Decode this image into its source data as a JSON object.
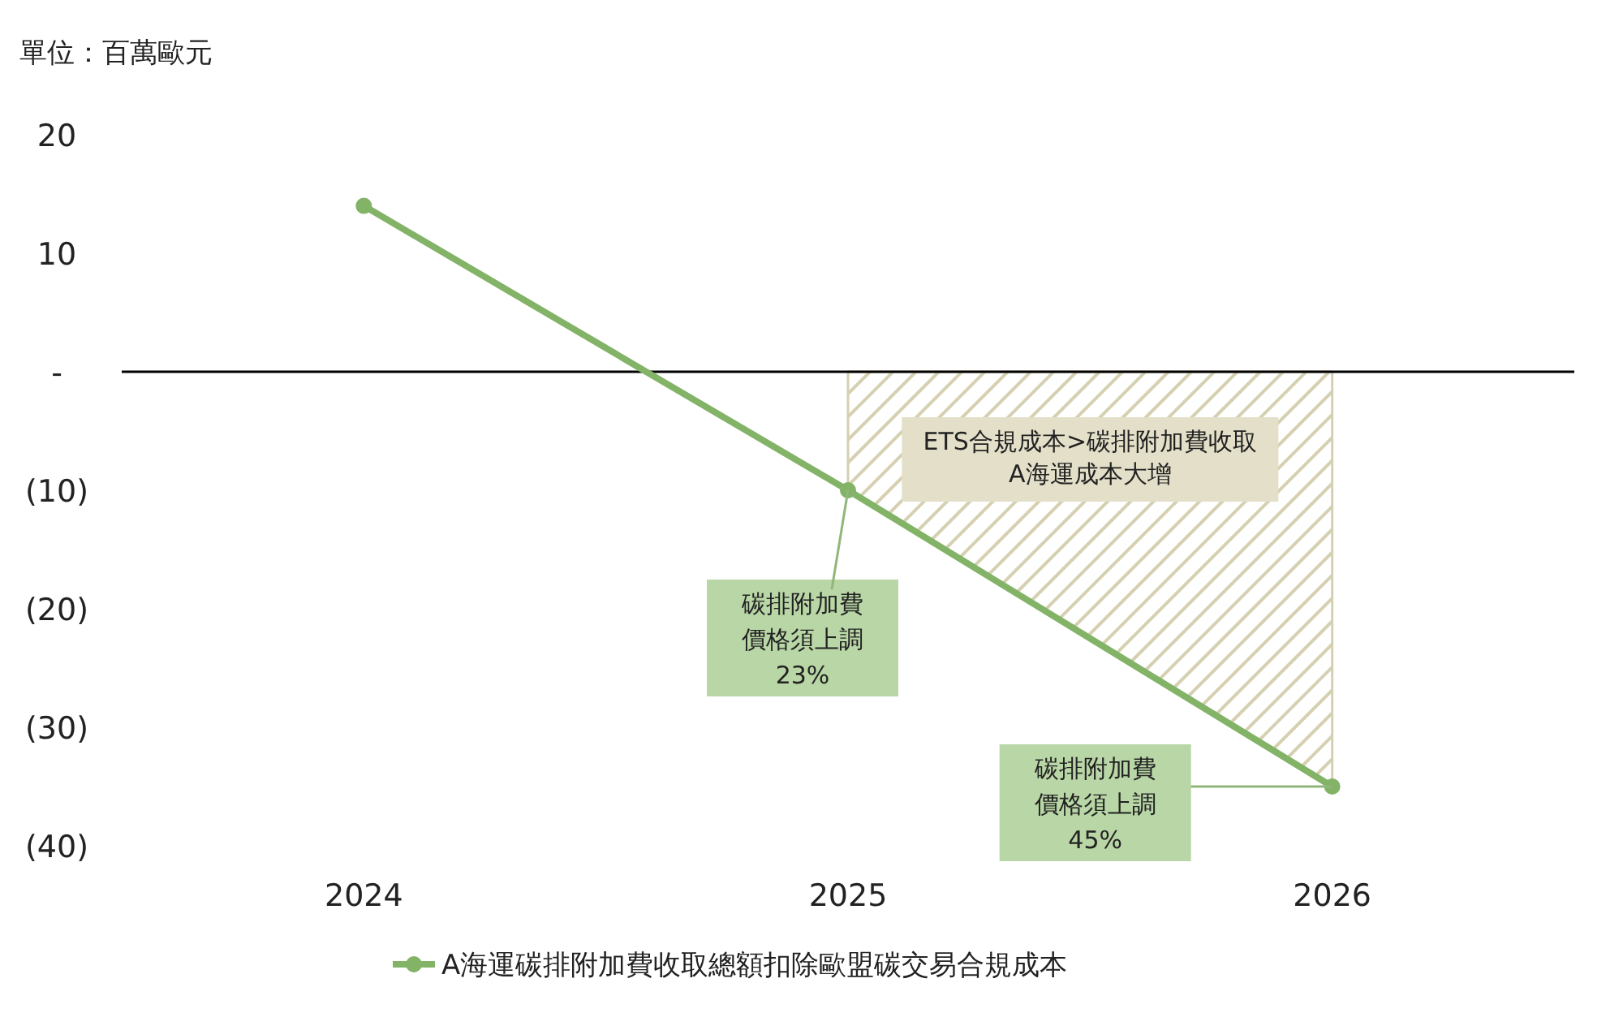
{
  "chart_data": {
    "type": "line",
    "ylabel": "單位：百萬歐元",
    "categories": [
      "2024",
      "2025",
      "2026"
    ],
    "series": [
      {
        "name": "A海運碳排附加費收取總額扣除歐盟碳交易合規成本",
        "color": "#82b366",
        "values": [
          14,
          -10,
          -35
        ]
      },
      {
        "type": "area",
        "color": "#d6d0b2",
        "marker": "none",
        "values": [
          null,
          -10,
          -35
        ]
      }
    ],
    "ref_lines": [
      {
        "axis": "y",
        "value": 0,
        "color": "#000000"
      }
    ],
    "ylim": [
      -40,
      20
    ],
    "yticks": [
      20,
      10,
      {
        "value": 0,
        "label": "-"
      },
      {
        "value": -10,
        "label": "(10)"
      },
      {
        "value": -20,
        "label": "(20)"
      },
      {
        "value": -30,
        "label": "(30)"
      },
      {
        "value": -40,
        "label": "(40)"
      }
    ],
    "annotations": [
      "ETS合規成本>碳排附加費收取A海運成本大增",
      {
        "text": "碳排附加費價格須上調23%",
        "x": "2025",
        "y": -10
      },
      {
        "text": "碳排附加費價格須上調45%",
        "x": "2026",
        "y": -35
      }
    ],
    "marker": "circle",
    "legend": "bottom",
    "grid": false
  }
}
